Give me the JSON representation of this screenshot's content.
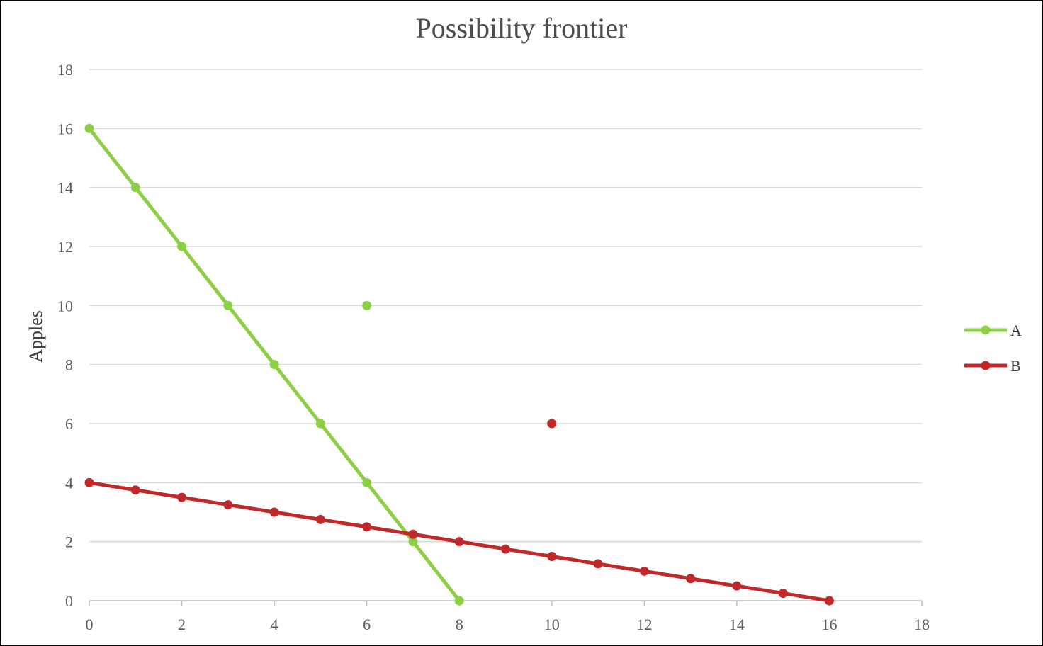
{
  "chart_data": {
    "type": "line",
    "title": "Possibility frontier",
    "xlabel": "",
    "ylabel": "Apples",
    "xlim": [
      0,
      18
    ],
    "ylim": [
      0,
      18
    ],
    "xticks": [
      0,
      2,
      4,
      6,
      8,
      10,
      12,
      14,
      16,
      18
    ],
    "yticks": [
      0,
      2,
      4,
      6,
      8,
      10,
      12,
      14,
      16,
      18
    ],
    "grid": "horizontal",
    "legend_position": "right",
    "series": [
      {
        "name": "A",
        "color": "#8ccf45",
        "x": [
          0,
          1,
          2,
          3,
          4,
          5,
          6,
          7,
          8
        ],
        "y": [
          16,
          14,
          12,
          10,
          8,
          6,
          4,
          2,
          0
        ]
      },
      {
        "name": "B",
        "color": "#c0282a",
        "x": [
          0,
          1,
          2,
          3,
          4,
          5,
          6,
          7,
          8,
          9,
          10,
          11,
          12,
          13,
          14,
          15,
          16
        ],
        "y": [
          4,
          3.75,
          3.5,
          3.25,
          3,
          2.75,
          2.5,
          2.25,
          2,
          1.75,
          1.5,
          1.25,
          1,
          0.75,
          0.5,
          0.25,
          0
        ]
      }
    ],
    "extra_points": [
      {
        "series": "A",
        "x": 6,
        "y": 10
      },
      {
        "series": "B",
        "x": 10,
        "y": 6
      }
    ]
  }
}
